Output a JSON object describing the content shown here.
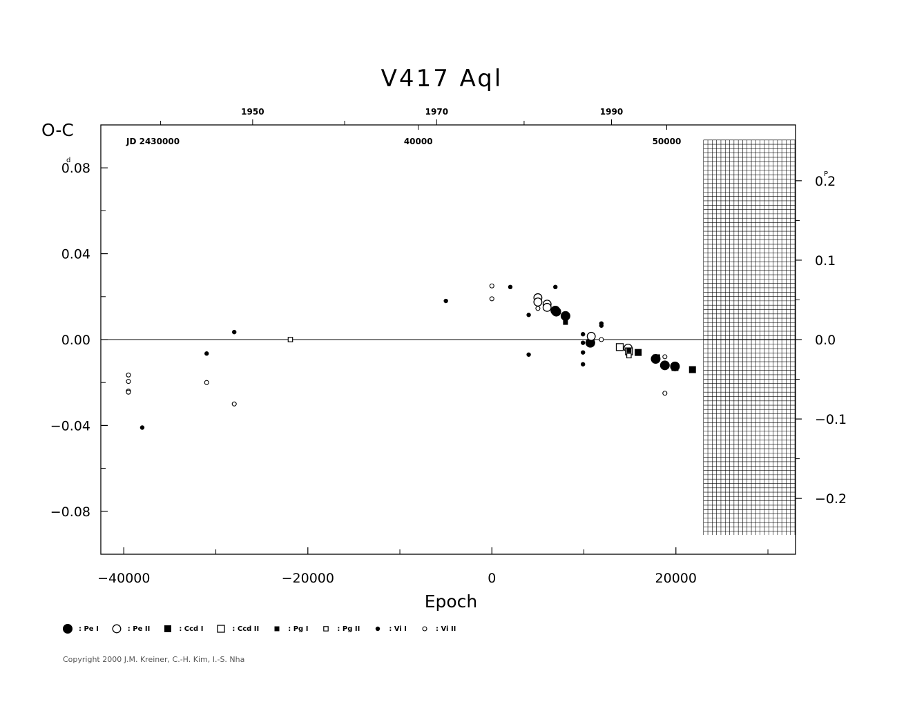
{
  "chart_data": {
    "type": "scatter",
    "title": "V417 Aql",
    "ylabel": "O-C",
    "xlabel": "Epoch",
    "y_unit_left": "d",
    "y_unit_right": "P",
    "xlim": [
      -42500,
      33000
    ],
    "ylim": [
      -0.1,
      0.1
    ],
    "x_ticks": [
      -40000,
      -20000,
      0,
      20000
    ],
    "x_tick_labels": [
      "−40000",
      "−20000",
      "0",
      "20000"
    ],
    "y_ticks_left": [
      -0.08,
      -0.04,
      0.0,
      0.04,
      0.08
    ],
    "y_tick_labels_left": [
      "−0.08",
      "−0.04",
      "0.00",
      "0.04",
      "0.08"
    ],
    "y_ticks_right": [
      -0.2,
      -0.1,
      0.0,
      0.1,
      0.2
    ],
    "y_tick_labels_right": [
      "−0.2",
      "−0.1",
      "0.0",
      "0.1",
      "0.2"
    ],
    "period_days": 0.37,
    "top_year_ticks": [
      1950,
      1970,
      1990
    ],
    "top_year_epochs": [
      -26000,
      -6000,
      13000
    ],
    "top_year_minor_epochs": [
      -36000,
      -16000,
      3500
    ],
    "top_jd_label": "JD 2430000",
    "top_jd_ticks": [
      {
        "label": "40000",
        "epoch": -8000
      },
      {
        "label": "50000",
        "epoch": 19000
      }
    ],
    "zero_line": true,
    "future_grid": {
      "from_epoch": 23000,
      "to_epoch": 33000,
      "top_y": 0.093,
      "bottom_y": -0.091
    },
    "series": [
      {
        "name": "Pe I",
        "marker": "filled-circle-large",
        "points": [
          [
            6900,
            0.0135
          ],
          [
            7000,
            0.013
          ],
          [
            8000,
            0.011
          ],
          [
            10700,
            -0.0015
          ],
          [
            17800,
            -0.009
          ],
          [
            18800,
            -0.012
          ],
          [
            19900,
            -0.0125
          ]
        ]
      },
      {
        "name": "Pe II",
        "marker": "open-circle-large",
        "points": [
          [
            5000,
            0.0195
          ],
          [
            5000,
            0.0175
          ],
          [
            6000,
            0.0165
          ],
          [
            6000,
            0.015
          ],
          [
            10800,
            0.0015
          ],
          [
            14800,
            -0.004
          ]
        ]
      },
      {
        "name": "Ccd I",
        "marker": "filled-square-large",
        "points": [
          [
            15900,
            -0.006
          ],
          [
            17900,
            -0.0085
          ],
          [
            19900,
            -0.013
          ],
          [
            21800,
            -0.014
          ]
        ]
      },
      {
        "name": "Ccd II",
        "marker": "open-square-large",
        "points": [
          [
            13900,
            -0.0035
          ],
          [
            14900,
            -0.0055
          ]
        ]
      },
      {
        "name": "Pg I",
        "marker": "filled-square-small",
        "points": [
          [
            8000,
            0.008
          ],
          [
            14900,
            -0.005
          ]
        ]
      },
      {
        "name": "Pg II",
        "marker": "open-square-small",
        "points": [
          [
            -21900,
            0.0
          ],
          [
            14900,
            -0.0075
          ]
        ]
      },
      {
        "name": "Vi I",
        "marker": "filled-circle-small",
        "points": [
          [
            -38000,
            -0.041
          ],
          [
            -31000,
            -0.0065
          ],
          [
            -28000,
            0.0035
          ],
          [
            -5000,
            0.018
          ],
          [
            2000,
            0.0245
          ],
          [
            4000,
            0.0115
          ],
          [
            4000,
            -0.007
          ],
          [
            6900,
            0.0245
          ],
          [
            9900,
            0.0025
          ],
          [
            9900,
            -0.0015
          ],
          [
            9900,
            -0.006
          ],
          [
            9900,
            -0.0115
          ],
          [
            11900,
            0.0075
          ],
          [
            11900,
            0.0065
          ]
        ]
      },
      {
        "name": "Vi II",
        "marker": "open-circle-small",
        "points": [
          [
            -39500,
            -0.0165
          ],
          [
            -39500,
            -0.0195
          ],
          [
            -39500,
            -0.024
          ],
          [
            -39500,
            -0.0245
          ],
          [
            -31000,
            -0.02
          ],
          [
            -28000,
            -0.03
          ],
          [
            0,
            0.025
          ],
          [
            0,
            0.019
          ],
          [
            5000,
            0.0145
          ],
          [
            11900,
            0.0
          ],
          [
            18800,
            -0.008
          ],
          [
            18800,
            -0.025
          ]
        ]
      }
    ]
  },
  "legend": [
    {
      "marker": "filled-circle-large",
      "label": ": Pe I"
    },
    {
      "marker": "open-circle-large",
      "label": ": Pe II"
    },
    {
      "marker": "filled-square-large",
      "label": ": Ccd I"
    },
    {
      "marker": "open-square-large",
      "label": ": Ccd II"
    },
    {
      "marker": "filled-square-small",
      "label": ": Pg I"
    },
    {
      "marker": "open-square-small",
      "label": ": Pg II"
    },
    {
      "marker": "filled-circle-small",
      "label": ": Vi I"
    },
    {
      "marker": "open-circle-small",
      "label": ": Vi II"
    }
  ],
  "copyright": "Copyright 2000 J.M. Kreiner, C.-H. Kim, I.-S. Nha"
}
